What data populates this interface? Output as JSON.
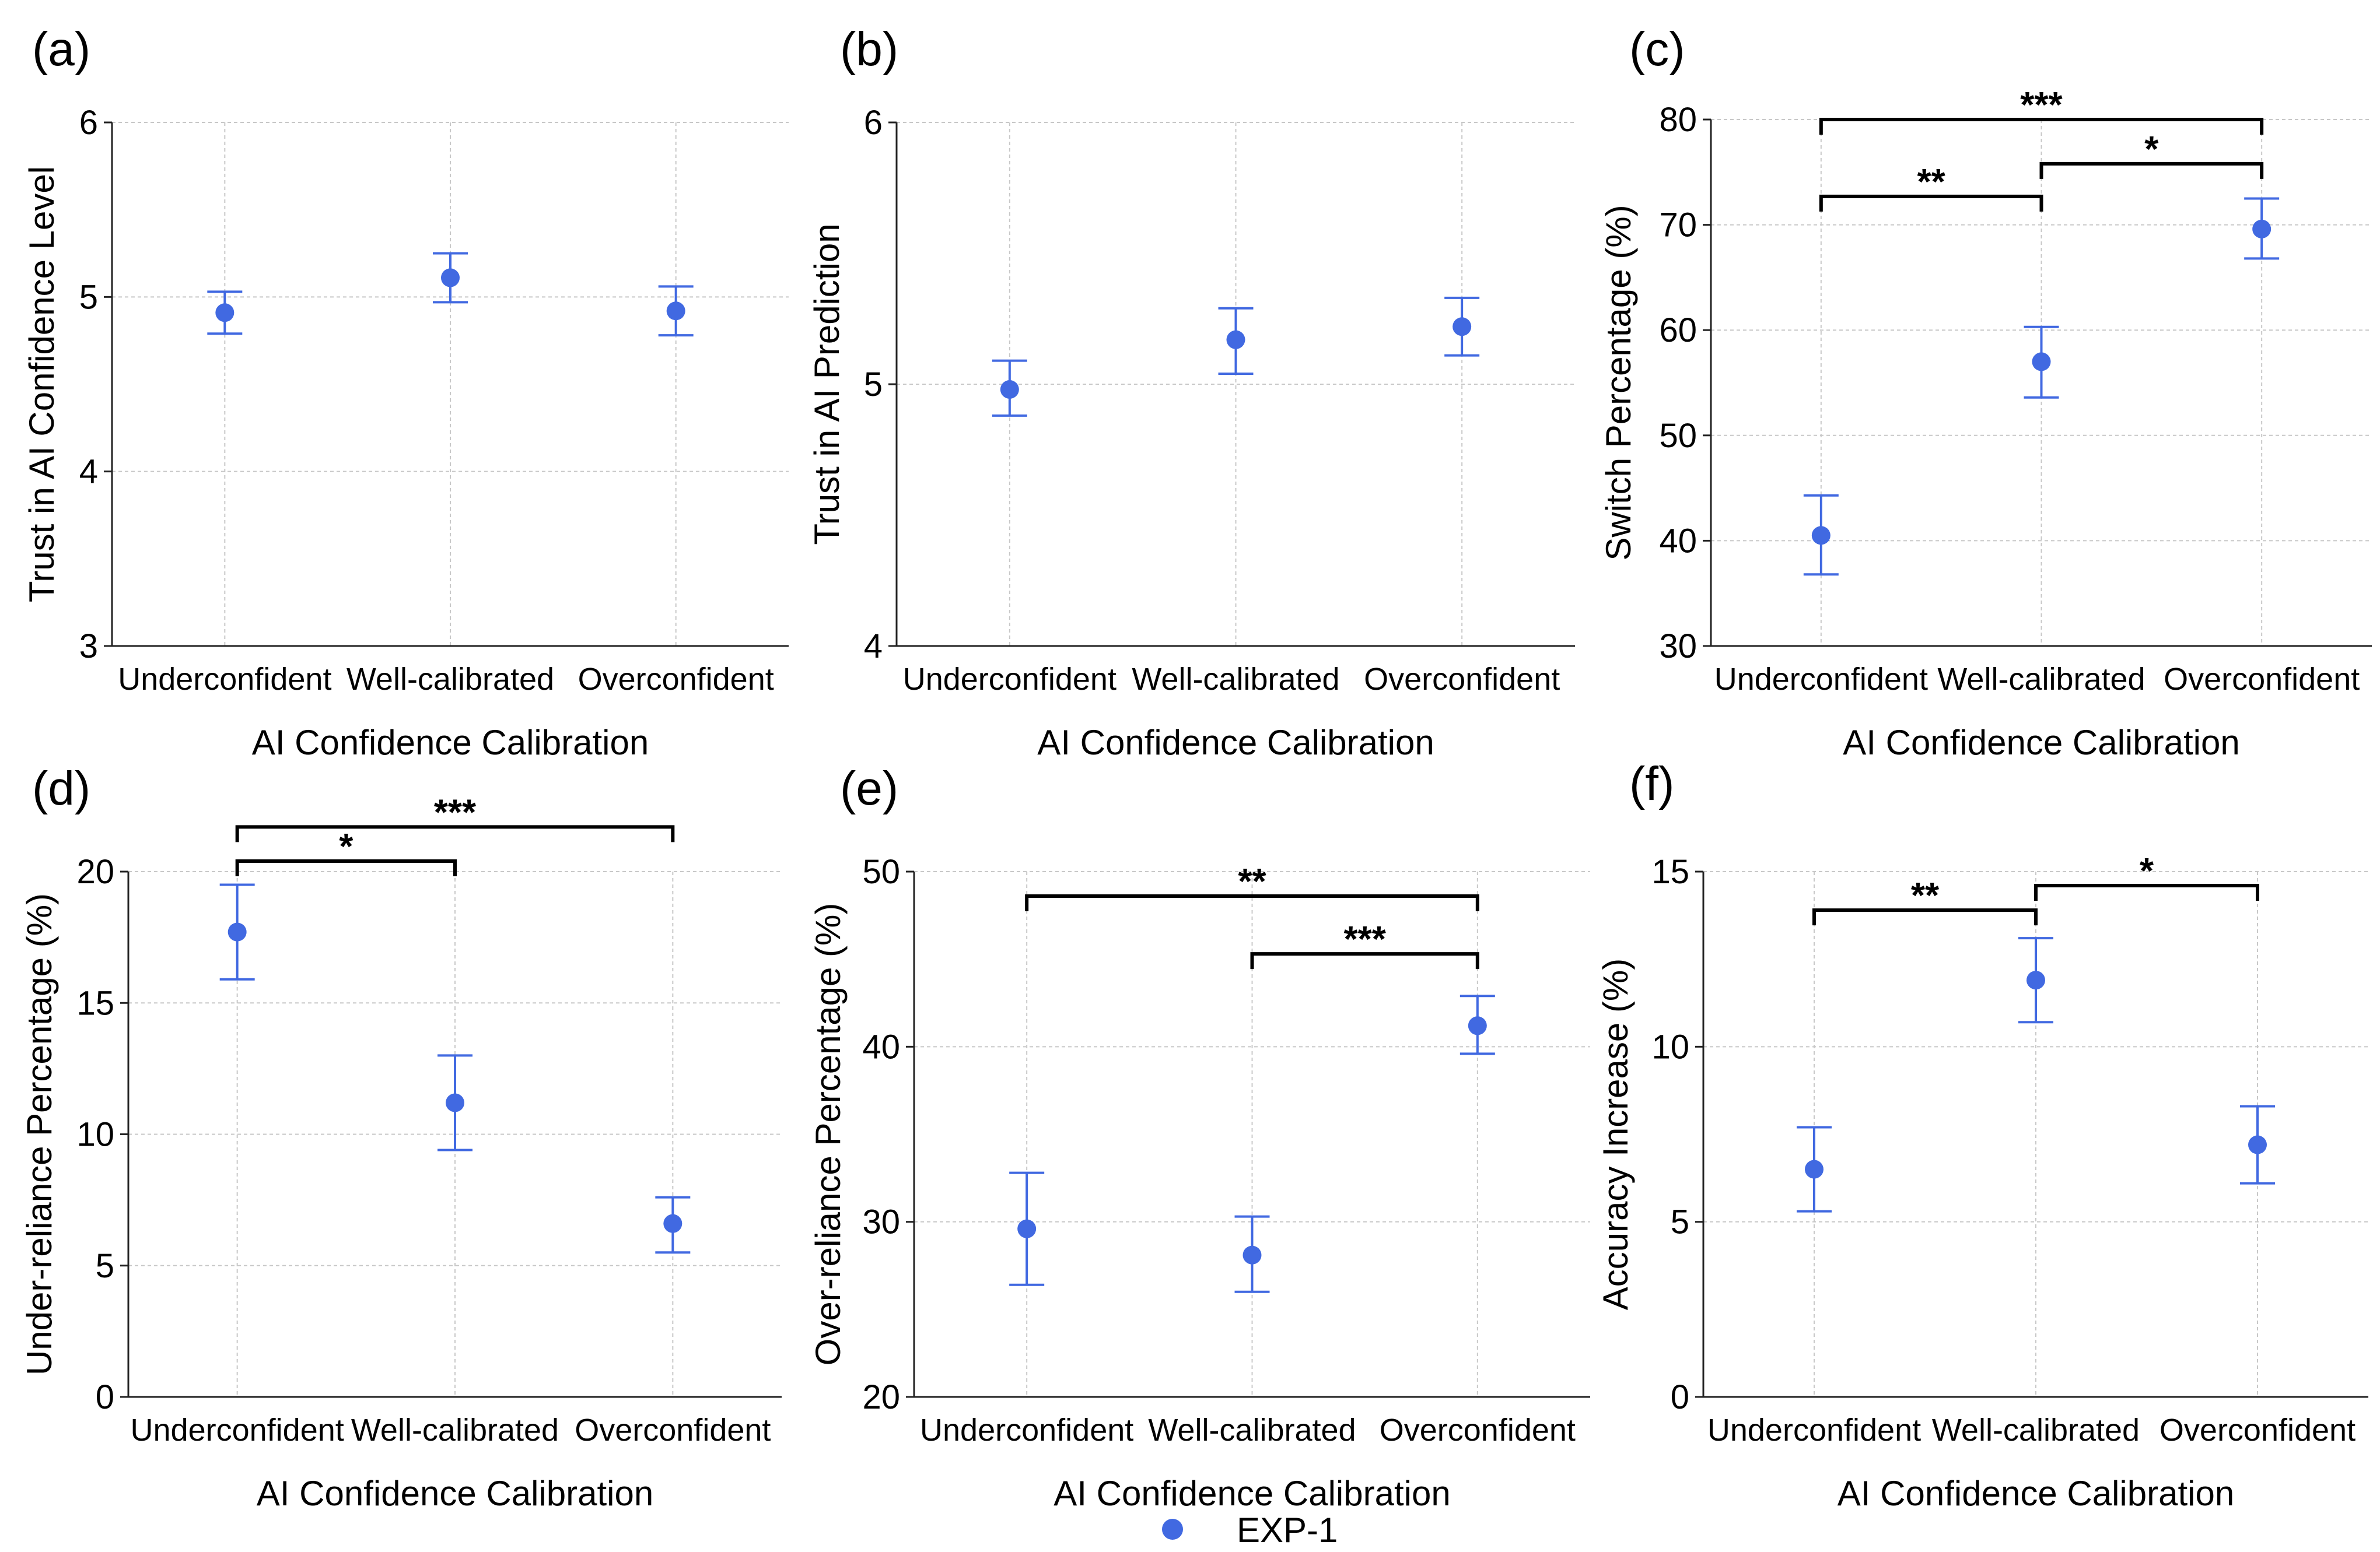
{
  "colors": {
    "point": "#4169e1",
    "grid": "#c8c8c8",
    "axis": "#222222"
  },
  "legend": {
    "label": "EXP-1"
  },
  "chart_data": [
    {
      "panel_label": "(a)",
      "type": "scatter",
      "categories": [
        "Underconfident",
        "Well-calibrated",
        "Overconfident"
      ],
      "values": [
        4.91,
        5.11,
        4.92
      ],
      "error_low": [
        4.79,
        4.97,
        4.78
      ],
      "error_high": [
        5.03,
        5.25,
        5.06
      ],
      "xlabel": "AI Confidence Calibration",
      "ylabel": "Trust in AI Confidence Level",
      "ylim": [
        3,
        6
      ],
      "yticks": [
        3,
        4,
        5,
        6
      ],
      "grid": true,
      "significance": []
    },
    {
      "panel_label": "(b)",
      "type": "scatter",
      "categories": [
        "Underconfident",
        "Well-calibrated",
        "Overconfident"
      ],
      "values": [
        4.98,
        5.17,
        5.22
      ],
      "error_low": [
        4.88,
        5.04,
        5.11
      ],
      "error_high": [
        5.09,
        5.29,
        5.33
      ],
      "xlabel": "AI Confidence Calibration",
      "ylabel": "Trust in AI Prediction",
      "ylim": [
        4,
        6
      ],
      "yticks": [
        4,
        5,
        6
      ],
      "grid": true,
      "significance": []
    },
    {
      "panel_label": "(c)",
      "type": "scatter",
      "categories": [
        "Underconfident",
        "Well-calibrated",
        "Overconfident"
      ],
      "values": [
        40.5,
        57.0,
        69.6
      ],
      "error_low": [
        36.8,
        53.6,
        66.8
      ],
      "error_high": [
        44.3,
        60.3,
        72.5
      ],
      "xlabel": "AI Confidence Calibration",
      "ylabel": "Switch Percentage (%)",
      "ylim": [
        30,
        80
      ],
      "yticks": [
        30,
        40,
        50,
        60,
        70,
        80
      ],
      "grid": true,
      "significance": [
        {
          "from": 0,
          "to": 2,
          "label": "***",
          "y": 80.0
        },
        {
          "from": 1,
          "to": 2,
          "label": "*",
          "y": 75.8
        },
        {
          "from": 0,
          "to": 1,
          "label": "**",
          "y": 72.7
        }
      ]
    },
    {
      "panel_label": "(d)",
      "type": "scatter",
      "categories": [
        "Underconfident",
        "Well-calibrated",
        "Overconfident"
      ],
      "values": [
        17.7,
        11.2,
        6.6
      ],
      "error_low": [
        15.9,
        9.4,
        5.5
      ],
      "error_high": [
        19.5,
        13.0,
        7.6
      ],
      "xlabel": "AI Confidence Calibration",
      "ylabel": "Under-reliance Percentage (%)",
      "ylim": [
        0,
        20
      ],
      "yticks": [
        0,
        5,
        10,
        15,
        20
      ],
      "grid": true,
      "significance": [
        {
          "from": 0,
          "to": 2,
          "label": "***",
          "y": 21.7
        },
        {
          "from": 0,
          "to": 1,
          "label": "*",
          "y": 20.4
        }
      ]
    },
    {
      "panel_label": "(e)",
      "type": "scatter",
      "categories": [
        "Underconfident",
        "Well-calibrated",
        "Overconfident"
      ],
      "values": [
        29.6,
        28.1,
        41.2
      ],
      "error_low": [
        26.4,
        26.0,
        39.6
      ],
      "error_high": [
        32.8,
        30.3,
        42.9
      ],
      "xlabel": "AI Confidence Calibration",
      "ylabel": "Over-reliance Percentage (%)",
      "ylim": [
        20,
        50
      ],
      "yticks": [
        20,
        30,
        40,
        50
      ],
      "grid": true,
      "significance": [
        {
          "from": 0,
          "to": 2,
          "label": "**",
          "y": 48.6
        },
        {
          "from": 1,
          "to": 2,
          "label": "***",
          "y": 45.3
        }
      ]
    },
    {
      "panel_label": "(f)",
      "type": "scatter",
      "categories": [
        "Underconfident",
        "Well-calibrated",
        "Overconfident"
      ],
      "values": [
        6.5,
        11.9,
        7.2
      ],
      "error_low": [
        5.3,
        10.7,
        6.1
      ],
      "error_high": [
        7.7,
        13.1,
        8.3
      ],
      "xlabel": "AI Confidence Calibration",
      "ylabel": "Accuracy Increase (%)",
      "ylim": [
        0,
        15
      ],
      "yticks": [
        0,
        5,
        10,
        15
      ],
      "grid": true,
      "significance": [
        {
          "from": 1,
          "to": 2,
          "label": "*",
          "y": 14.6
        },
        {
          "from": 0,
          "to": 1,
          "label": "**",
          "y": 13.9
        }
      ]
    }
  ]
}
